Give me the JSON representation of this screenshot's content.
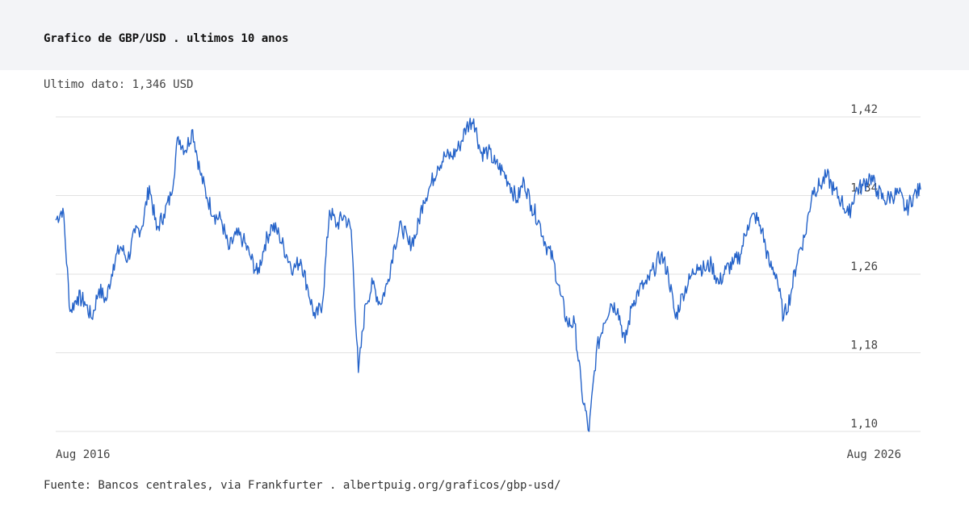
{
  "header": {
    "title": "Grafico de GBP/USD . ultimos 10 anos"
  },
  "subtitle": "Ultimo dato: 1,346 USD",
  "footer": "Fuente: Bancos centrales, via Frankfurter . albertpuig.org/graficos/gbp-usd/",
  "colors": {
    "line": "#2563c9",
    "grid": "#e2e2e2",
    "header_bg": "#f3f4f7"
  },
  "chart_data": {
    "type": "line",
    "title": "Grafico de GBP/USD . ultimos 10 anos",
    "xlabel": "",
    "ylabel": "",
    "x_tick_labels": [
      "Aug 2016",
      "Aug 2026"
    ],
    "xlim": [
      "2016-08",
      "2026-08"
    ],
    "y_ticks": [
      1.42,
      1.34,
      1.26,
      1.18,
      1.1
    ],
    "y_tick_labels": [
      "1,42",
      "1,34",
      "1,26",
      "1,18",
      "1,10"
    ],
    "ylim": [
      1.1,
      1.42
    ],
    "grid": true,
    "series": [
      {
        "x": [
          "2016-08",
          "2016-09",
          "2016-10",
          "2016-11",
          "2016-12",
          "2017-01",
          "2017-02",
          "2017-03",
          "2017-04",
          "2017-05",
          "2017-06",
          "2017-07",
          "2017-08",
          "2017-09",
          "2017-10",
          "2017-11",
          "2017-12",
          "2018-01",
          "2018-02",
          "2018-03",
          "2018-04",
          "2018-05",
          "2018-06",
          "2018-07",
          "2018-08",
          "2018-09",
          "2018-10",
          "2018-11",
          "2018-12",
          "2019-01",
          "2019-02",
          "2019-03",
          "2019-04",
          "2019-05",
          "2019-06",
          "2019-07",
          "2019-08",
          "2019-09",
          "2019-10",
          "2019-11",
          "2019-12",
          "2020-01",
          "2020-02",
          "2020-03",
          "2020-04",
          "2020-05",
          "2020-06",
          "2020-07",
          "2020-08",
          "2020-09",
          "2020-10",
          "2020-11",
          "2020-12",
          "2021-01",
          "2021-02",
          "2021-03",
          "2021-04",
          "2021-05",
          "2021-06",
          "2021-07",
          "2021-08",
          "2021-09",
          "2021-10",
          "2021-11",
          "2021-12",
          "2022-01",
          "2022-02",
          "2022-03",
          "2022-04",
          "2022-05",
          "2022-06",
          "2022-07",
          "2022-08",
          "2022-09",
          "2022-10",
          "2022-11",
          "2022-12",
          "2023-01",
          "2023-02",
          "2023-03",
          "2023-04",
          "2023-05",
          "2023-06",
          "2023-07",
          "2023-08",
          "2023-09",
          "2023-10",
          "2023-11",
          "2023-12",
          "2024-01",
          "2024-02",
          "2024-03",
          "2024-04",
          "2024-05",
          "2024-06",
          "2024-07",
          "2024-08",
          "2024-09",
          "2024-10",
          "2024-11",
          "2024-12",
          "2025-01",
          "2025-02",
          "2025-03",
          "2025-04",
          "2025-05",
          "2025-06",
          "2025-07",
          "2025-08",
          "2025-09",
          "2025-10",
          "2025-11",
          "2025-12",
          "2026-01",
          "2026-02",
          "2026-03",
          "2026-04",
          "2026-05",
          "2026-06",
          "2026-07",
          "2026-08"
        ],
        "values": [
          1.315,
          1.327,
          1.222,
          1.237,
          1.232,
          1.215,
          1.245,
          1.233,
          1.27,
          1.288,
          1.275,
          1.302,
          1.309,
          1.35,
          1.305,
          1.321,
          1.34,
          1.4,
          1.386,
          1.407,
          1.365,
          1.338,
          1.32,
          1.315,
          1.285,
          1.3,
          1.295,
          1.278,
          1.26,
          1.29,
          1.31,
          1.3,
          1.28,
          1.265,
          1.275,
          1.245,
          1.215,
          1.23,
          1.325,
          1.31,
          1.32,
          1.305,
          1.16,
          1.23,
          1.25,
          1.23,
          1.25,
          1.29,
          1.31,
          1.29,
          1.3,
          1.335,
          1.35,
          1.37,
          1.38,
          1.38,
          1.39,
          1.41,
          1.418,
          1.383,
          1.385,
          1.372,
          1.365,
          1.352,
          1.335,
          1.355,
          1.33,
          1.315,
          1.29,
          1.275,
          1.24,
          1.21,
          1.21,
          1.14,
          1.1,
          1.18,
          1.21,
          1.23,
          1.225,
          1.19,
          1.23,
          1.245,
          1.25,
          1.265,
          1.28,
          1.26,
          1.215,
          1.24,
          1.255,
          1.27,
          1.265,
          1.27,
          1.25,
          1.265,
          1.27,
          1.28,
          1.31,
          1.32,
          1.305,
          1.27,
          1.26,
          1.215,
          1.24,
          1.28,
          1.3,
          1.345,
          1.35,
          1.36,
          1.345,
          1.335,
          1.32,
          1.345,
          1.35,
          1.36,
          1.345,
          1.335,
          1.34,
          1.342,
          1.325,
          1.34,
          1.346
        ]
      }
    ]
  }
}
